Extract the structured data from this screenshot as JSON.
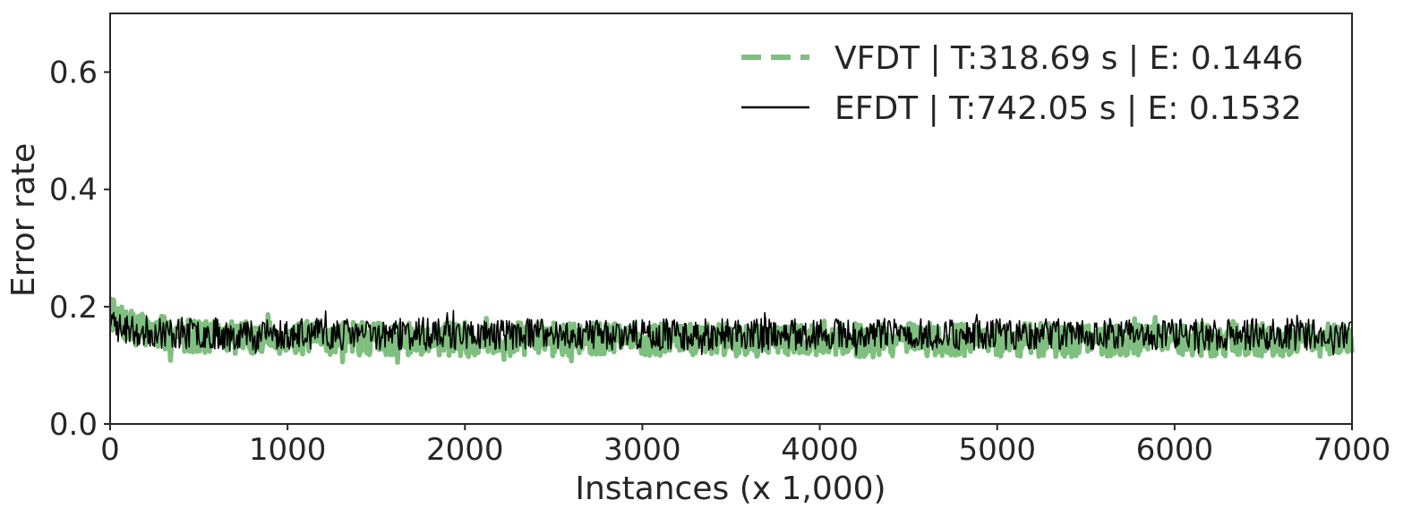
{
  "chart_data": {
    "type": "line",
    "title": "",
    "xlabel": "Instances (x 1,000)",
    "ylabel": "Error rate",
    "xlim": [
      0,
      7000
    ],
    "ylim": [
      0,
      0.7
    ],
    "xticks": [
      0,
      1000,
      2000,
      3000,
      4000,
      5000,
      6000,
      7000
    ],
    "xtick_labels": [
      "0",
      "1000",
      "2000",
      "3000",
      "4000",
      "5000",
      "6000",
      "7000"
    ],
    "yticks": [
      0.0,
      0.2,
      0.4,
      0.6
    ],
    "ytick_labels": [
      "0.0",
      "0.2",
      "0.4",
      "0.6"
    ],
    "grid": false,
    "legend_position": "top-right",
    "series": [
      {
        "name": "VFDT | T:318.69 s | E: 0.1446",
        "color": "#7fbf7f",
        "style": "dashed",
        "x": [
          0,
          50,
          100,
          200,
          300,
          400,
          500,
          700,
          1000,
          1500,
          2000,
          2500,
          3000,
          3500,
          4000,
          4500,
          5000,
          5500,
          6000,
          6500,
          7000
        ],
        "values": [
          0.19,
          0.175,
          0.165,
          0.16,
          0.155,
          0.152,
          0.15,
          0.148,
          0.147,
          0.145,
          0.145,
          0.144,
          0.144,
          0.144,
          0.143,
          0.143,
          0.143,
          0.143,
          0.143,
          0.143,
          0.142
        ]
      },
      {
        "name": "EFDT | T:742.05 s | E: 0.1532",
        "color": "#000000",
        "style": "solid",
        "x": [
          0,
          50,
          100,
          200,
          300,
          400,
          500,
          700,
          1000,
          1500,
          2000,
          2500,
          3000,
          3500,
          4000,
          4500,
          5000,
          5500,
          6000,
          6500,
          7000
        ],
        "values": [
          0.17,
          0.165,
          0.16,
          0.158,
          0.156,
          0.155,
          0.155,
          0.154,
          0.153,
          0.153,
          0.153,
          0.153,
          0.153,
          0.153,
          0.153,
          0.153,
          0.153,
          0.153,
          0.153,
          0.153,
          0.153
        ]
      }
    ]
  }
}
